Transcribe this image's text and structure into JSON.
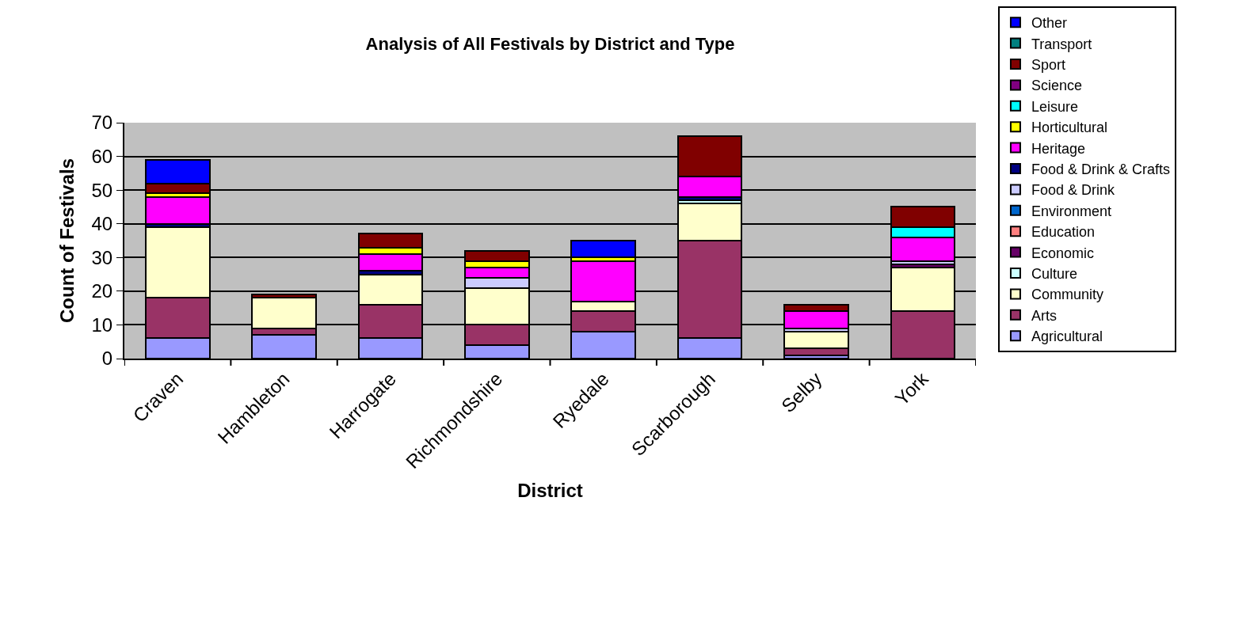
{
  "chart_data": {
    "type": "bar",
    "stacked": true,
    "title": "Analysis of All Festivals by District and Type",
    "xlabel": "District",
    "ylabel": "Count of Festivals",
    "categories": [
      "Craven",
      "Hambleton",
      "Harrogate",
      "Richmondshire",
      "Ryedale",
      "Scarborough",
      "Selby",
      "York"
    ],
    "ylim": [
      0,
      70
    ],
    "yticks": [
      0,
      10,
      20,
      30,
      40,
      50,
      60,
      70
    ],
    "grid": "y",
    "legend": "right",
    "series": [
      {
        "name": "Agricultural",
        "color": "#9999ff",
        "values": [
          6,
          7,
          6,
          4,
          8,
          6,
          1,
          0
        ]
      },
      {
        "name": "Arts",
        "color": "#993366",
        "values": [
          12,
          2,
          10,
          6,
          6,
          29,
          2,
          14
        ]
      },
      {
        "name": "Community",
        "color": "#ffffcc",
        "values": [
          21,
          9,
          9,
          11,
          3,
          11,
          5,
          13
        ]
      },
      {
        "name": "Culture",
        "color": "#ccffff",
        "values": [
          0,
          0,
          0,
          0,
          0,
          1,
          0,
          0
        ]
      },
      {
        "name": "Economic",
        "color": "#660066",
        "values": [
          0,
          0,
          0,
          0,
          0,
          0,
          0,
          1
        ]
      },
      {
        "name": "Education",
        "color": "#ff8080",
        "values": [
          0,
          0,
          0,
          0,
          0,
          0,
          0,
          0
        ]
      },
      {
        "name": "Environment",
        "color": "#0066cc",
        "values": [
          0,
          0,
          0,
          0,
          0,
          0,
          0,
          0
        ]
      },
      {
        "name": "Food & Drink",
        "color": "#ccccff",
        "values": [
          0,
          0,
          0,
          3,
          0,
          0,
          1,
          1
        ]
      },
      {
        "name": "Food & Drink & Crafts",
        "color": "#000080",
        "values": [
          1,
          0,
          1,
          0,
          0,
          1,
          0,
          0
        ]
      },
      {
        "name": "Heritage",
        "color": "#ff00ff",
        "values": [
          8,
          0,
          5,
          3,
          12,
          6,
          5,
          7
        ]
      },
      {
        "name": "Horticultural",
        "color": "#ffff00",
        "values": [
          1,
          0,
          2,
          2,
          1,
          0,
          0,
          0
        ]
      },
      {
        "name": "Leisure",
        "color": "#00ffff",
        "values": [
          0,
          0,
          0,
          0,
          0,
          0,
          0,
          3
        ]
      },
      {
        "name": "Science",
        "color": "#800080",
        "values": [
          0,
          0,
          0,
          0,
          0,
          0,
          0,
          0
        ]
      },
      {
        "name": "Sport",
        "color": "#800000",
        "values": [
          3,
          1,
          4,
          3,
          0,
          12,
          2,
          6
        ]
      },
      {
        "name": "Transport",
        "color": "#008080",
        "values": [
          0,
          0,
          0,
          0,
          0,
          0,
          0,
          0
        ]
      },
      {
        "name": "Other",
        "color": "#0000ff",
        "values": [
          7,
          0,
          0,
          0,
          5,
          0,
          0,
          0
        ]
      }
    ]
  }
}
